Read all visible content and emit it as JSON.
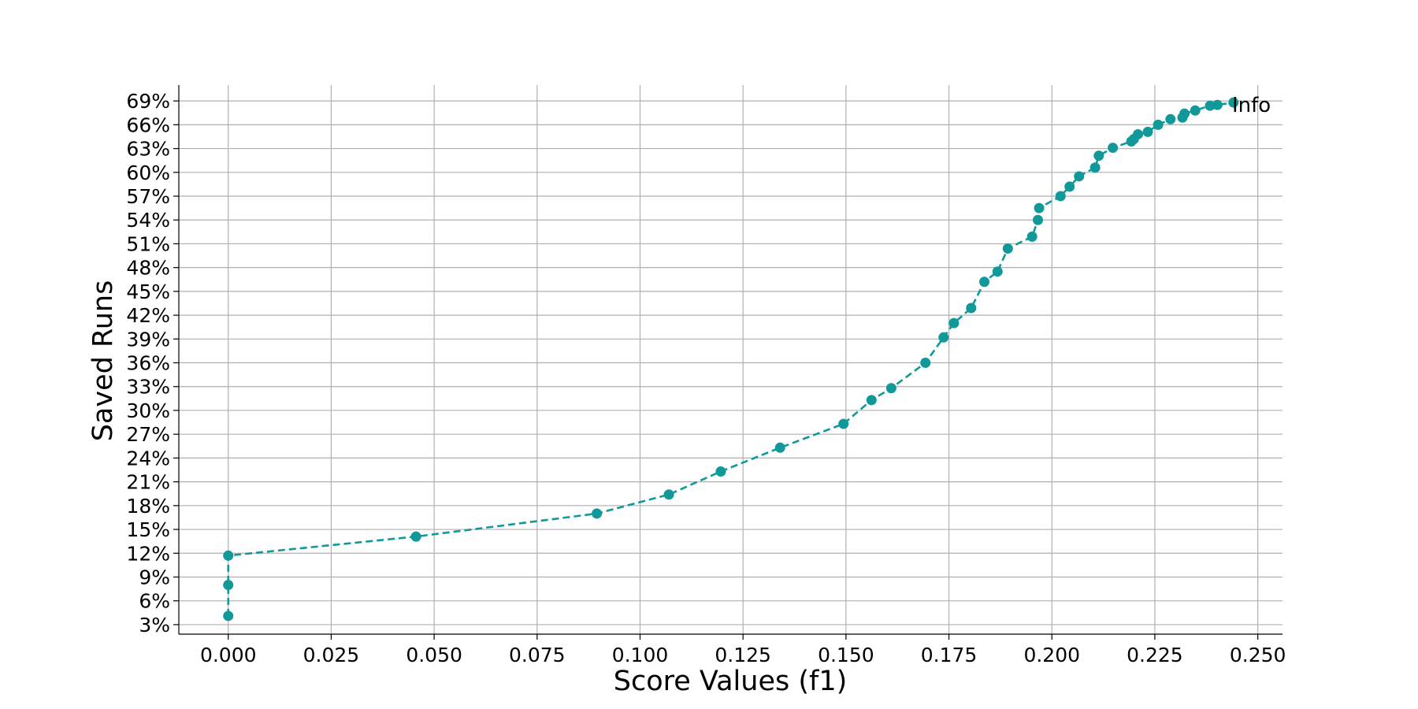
{
  "chart_data": {
    "type": "line",
    "title": "",
    "xlabel": "Score Values (f1)",
    "ylabel": "Saved Runs",
    "annotation": "Info",
    "xlim": [
      -0.012,
      0.256
    ],
    "ylim": [
      1.8,
      71.0
    ],
    "x_ticks": [
      0.0,
      0.025,
      0.05,
      0.075,
      0.1,
      0.125,
      0.15,
      0.175,
      0.2,
      0.225,
      0.25
    ],
    "x_tick_labels": [
      "0.000",
      "0.025",
      "0.050",
      "0.075",
      "0.100",
      "0.125",
      "0.150",
      "0.175",
      "0.200",
      "0.225",
      "0.250"
    ],
    "y_ticks": [
      3,
      6,
      9,
      12,
      15,
      18,
      21,
      24,
      27,
      30,
      33,
      36,
      39,
      42,
      45,
      48,
      51,
      54,
      57,
      60,
      63,
      66,
      69
    ],
    "y_tick_labels": [
      "3%",
      "6%",
      "9%",
      "12%",
      "15%",
      "18%",
      "21%",
      "24%",
      "27%",
      "30%",
      "33%",
      "36%",
      "39%",
      "42%",
      "45%",
      "48%",
      "51%",
      "54%",
      "57%",
      "60%",
      "63%",
      "66%",
      "69%"
    ],
    "grid": true,
    "series": [
      {
        "color": "#11999a",
        "line_style": "dashed",
        "marker": "circle",
        "points": [
          {
            "x": 0.0,
            "y": 4.1
          },
          {
            "x": 0.0,
            "y": 8.0
          },
          {
            "x": 0.0,
            "y": 11.7
          },
          {
            "x": 0.0456,
            "y": 14.1
          },
          {
            "x": 0.0895,
            "y": 17.0
          },
          {
            "x": 0.107,
            "y": 19.4
          },
          {
            "x": 0.1196,
            "y": 22.3
          },
          {
            "x": 0.134,
            "y": 25.3
          },
          {
            "x": 0.1494,
            "y": 28.3
          },
          {
            "x": 0.1562,
            "y": 31.3
          },
          {
            "x": 0.161,
            "y": 32.8
          },
          {
            "x": 0.1693,
            "y": 36.0
          },
          {
            "x": 0.1737,
            "y": 39.2
          },
          {
            "x": 0.1762,
            "y": 41.0
          },
          {
            "x": 0.1804,
            "y": 42.9
          },
          {
            "x": 0.1836,
            "y": 46.2
          },
          {
            "x": 0.1868,
            "y": 47.5
          },
          {
            "x": 0.1893,
            "y": 50.4
          },
          {
            "x": 0.1952,
            "y": 51.9
          },
          {
            "x": 0.1966,
            "y": 54.0
          },
          {
            "x": 0.1969,
            "y": 55.5
          },
          {
            "x": 0.2021,
            "y": 57.0
          },
          {
            "x": 0.2043,
            "y": 58.2
          },
          {
            "x": 0.2066,
            "y": 59.5
          },
          {
            "x": 0.2105,
            "y": 60.6
          },
          {
            "x": 0.2114,
            "y": 62.1
          },
          {
            "x": 0.2148,
            "y": 63.1
          },
          {
            "x": 0.2193,
            "y": 63.9
          },
          {
            "x": 0.2199,
            "y": 64.2
          },
          {
            "x": 0.2209,
            "y": 64.8
          },
          {
            "x": 0.2233,
            "y": 65.1
          },
          {
            "x": 0.2258,
            "y": 66.0
          },
          {
            "x": 0.2288,
            "y": 66.7
          },
          {
            "x": 0.2317,
            "y": 66.9
          },
          {
            "x": 0.2322,
            "y": 67.4
          },
          {
            "x": 0.2348,
            "y": 67.8
          },
          {
            "x": 0.2384,
            "y": 68.4
          },
          {
            "x": 0.2402,
            "y": 68.5
          },
          {
            "x": 0.2441,
            "y": 68.8
          }
        ]
      }
    ]
  }
}
